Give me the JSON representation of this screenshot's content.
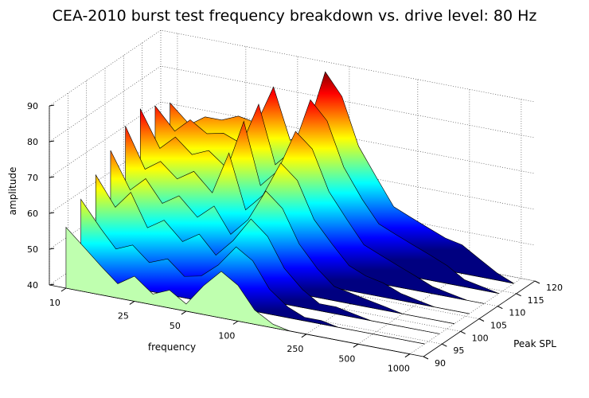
{
  "chart_data": {
    "type": "waterfall",
    "title": "CEA-2010 burst test frequency breakdown vs. drive level: 80 Hz",
    "xlabel": "frequency",
    "ylabel": "Peak SPL",
    "zlabel": "amplitude",
    "x": [
      10,
      13,
      16,
      20,
      25,
      32,
      40,
      50,
      63,
      80,
      100,
      125,
      160,
      200,
      250,
      315,
      400,
      500,
      630,
      800,
      1000
    ],
    "xlim": [
      8,
      1200
    ],
    "xscale": "log",
    "xticks": [
      10,
      25,
      50,
      100,
      250,
      500,
      1000
    ],
    "ylim": [
      90,
      120
    ],
    "yticks": [
      90,
      95,
      100,
      105,
      110,
      115,
      120
    ],
    "zlim": [
      40,
      90
    ],
    "zticks": [
      40,
      50,
      60,
      70,
      80,
      90
    ],
    "colormap": "jet",
    "front_color": "#bfffaf",
    "grid": true,
    "series": [
      {
        "spl": 90,
        "values": [
          57,
          52,
          48,
          44,
          47,
          43,
          45,
          42,
          48,
          53,
          50,
          44,
          41,
          40,
          40,
          40,
          40,
          40,
          40,
          40,
          40
        ]
      },
      {
        "spl": 94,
        "values": [
          62,
          55,
          50,
          52,
          48,
          50,
          46,
          47,
          51,
          57,
          54,
          47,
          43,
          41,
          41,
          40,
          40,
          40,
          40,
          40,
          40
        ]
      },
      {
        "spl": 98,
        "values": [
          66,
          58,
          63,
          54,
          57,
          52,
          55,
          50,
          55,
          62,
          58,
          50,
          45,
          42,
          42,
          41,
          40,
          40,
          40,
          40,
          40
        ]
      },
      {
        "spl": 102,
        "values": [
          70,
          60,
          64,
          58,
          61,
          56,
          60,
          53,
          58,
          67,
          63,
          54,
          48,
          44,
          43,
          42,
          41,
          40,
          40,
          40,
          40
        ]
      },
      {
        "spl": 106,
        "values": [
          74,
          63,
          66,
          62,
          65,
          60,
          72,
          57,
          62,
          72,
          68,
          58,
          52,
          47,
          45,
          44,
          42,
          41,
          40,
          40,
          40
        ]
      },
      {
        "spl": 110,
        "values": [
          76,
          66,
          70,
          66,
          68,
          64,
          78,
          61,
          66,
          78,
          74,
          63,
          56,
          50,
          48,
          46,
          44,
          42,
          41,
          40,
          40
        ]
      },
      {
        "spl": 114,
        "values": [
          74,
          68,
          72,
          69,
          70,
          68,
          80,
          64,
          69,
          84,
          79,
          67,
          59,
          53,
          51,
          49,
          47,
          45,
          42,
          41,
          40
        ]
      },
      {
        "spl": 118,
        "values": [
          72,
          67,
          70,
          70,
          72,
          71,
          82,
          68,
          72,
          89,
          83,
          70,
          62,
          55,
          53,
          51,
          49,
          48,
          45,
          42,
          40
        ]
      }
    ]
  }
}
